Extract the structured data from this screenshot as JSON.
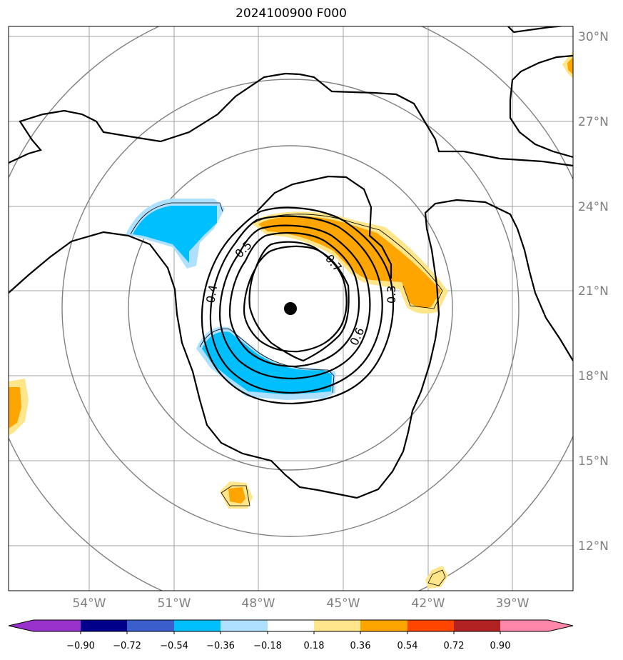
{
  "title": "2024100900 F000",
  "lon_labels": [
    "54°W",
    "51°W",
    "48°W",
    "45°W",
    "42°W",
    "39°W"
  ],
  "lat_labels": [
    "30°N",
    "27°N",
    "24°N",
    "21°N",
    "18°N",
    "15°N",
    "12°N"
  ],
  "contour_labels": [
    "0.3",
    "0.4",
    "0.5",
    "0.6",
    "0.7"
  ],
  "colorbar": {
    "tick_labels": [
      "−0.90",
      "−0.72",
      "−0.54",
      "−0.36",
      "−0.18",
      "0.18",
      "0.36",
      "0.54",
      "0.72",
      "0.90"
    ],
    "colors": [
      "#9932cc",
      "#00008b",
      "#3a5fcd",
      "#00bfff",
      "#b0e0ff",
      "#ffffff",
      "#ffe68a",
      "#ffa500",
      "#ff4500",
      "#b22222",
      "#ff88aa"
    ]
  },
  "colors": {
    "positive_light": "#ffe68a",
    "positive_mid": "#ffa500",
    "negative_mid": "#00bfff",
    "negative_light": "#b0e0ff",
    "grid": "#a0a0a0",
    "range_rings": "#808080",
    "contours": "#000000",
    "center_marker": "#000000"
  }
}
